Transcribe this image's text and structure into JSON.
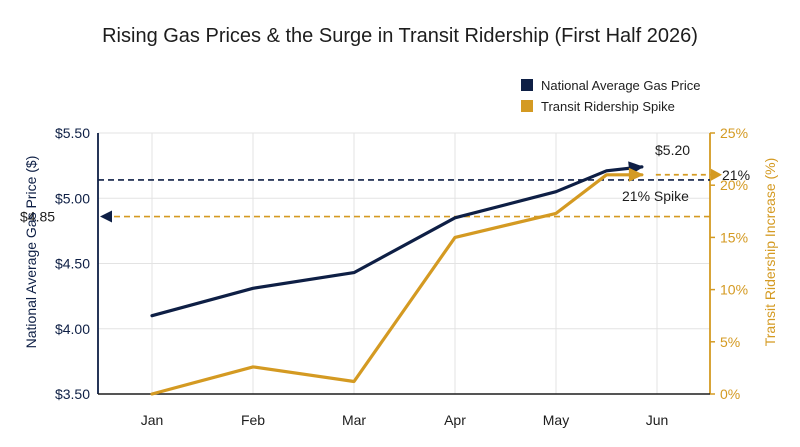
{
  "chart_data": {
    "type": "line",
    "title": "Rising Gas Prices & the Surge in Transit Ridership (First Half 2026)",
    "categories": [
      "Jan",
      "Feb",
      "Mar",
      "Apr",
      "May",
      "Jun"
    ],
    "series": [
      {
        "name": "National Average Gas Price",
        "axis": "left",
        "color": "#0e1f45",
        "x": [
          1,
          2,
          3,
          4,
          5,
          5.5,
          5.85
        ],
        "values": [
          4.1,
          4.31,
          4.43,
          4.85,
          5.05,
          5.21,
          5.24
        ]
      },
      {
        "name": "Transit Ridership Spike",
        "axis": "right",
        "color": "#d49a22",
        "x": [
          1,
          2,
          3,
          4,
          5,
          5.5,
          5.85
        ],
        "values": [
          0,
          2.6,
          1.2,
          15,
          17.3,
          21,
          21
        ]
      }
    ],
    "y_left": {
      "label": "National Average Gas Price ($)",
      "ticks": [
        3.5,
        4.0,
        4.5,
        5.0,
        5.5
      ],
      "tick_labels": [
        "$3.50",
        "$4.00",
        "$4.50",
        "$5.00",
        "$5.50"
      ],
      "range": [
        3.5,
        5.5
      ]
    },
    "y_right": {
      "label": "Transit Ridership Increase (%)",
      "ticks": [
        0,
        5,
        10,
        15,
        20,
        25
      ],
      "tick_labels": [
        "0%",
        "5%",
        "10%",
        "15%",
        "20%",
        "25%"
      ],
      "range": [
        0,
        25
      ]
    },
    "reference_lines": [
      {
        "axis": "left",
        "value": 5.14,
        "color": "#0e1f45",
        "style": "dashed"
      },
      {
        "axis": "right",
        "value": 17,
        "color": "#d49a22",
        "style": "dashed"
      }
    ],
    "annotations": {
      "gas_peak": "$5.20",
      "gas_ref_label": "$4.85",
      "ridership_end": "21%",
      "ridership_spike": "21% Spike"
    },
    "legend": "top-right",
    "grid": true
  }
}
